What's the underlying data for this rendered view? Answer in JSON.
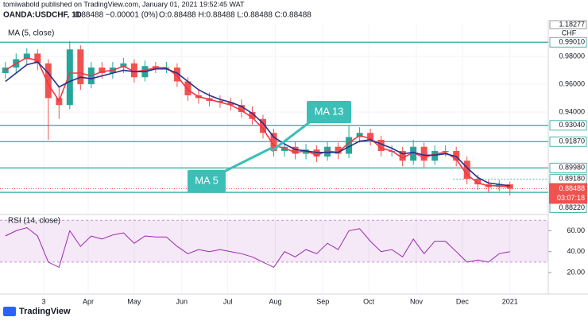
{
  "chart_data": {
    "type": "candlestick",
    "header": {
      "author_line": "tomiwabold published on TradingView.com, January 01, 2021 19:52:45 WAT",
      "symbol": "OANDA:USDCHF, 1D",
      "quote": "0.88488 −0.00001 (0%)",
      "ohlc": "O:0.88488 H:0.88488 L:0.88488 C:0.88488"
    },
    "ma_legend": "MA (5, close)",
    "top_label": "1.18277",
    "currency": "CHF",
    "countdown": "03:07:18",
    "footer": "TradingView",
    "x": [
      38,
      45,
      52,
      59,
      66,
      73,
      80,
      87,
      94,
      101,
      108,
      115,
      122,
      129,
      136,
      143,
      150,
      157,
      164,
      171,
      178,
      185,
      192,
      199,
      206,
      213,
      220,
      227,
      234,
      241,
      248,
      255,
      262,
      269,
      276,
      283,
      290,
      297,
      304,
      311,
      318,
      325,
      332,
      339,
      346,
      353,
      360,
      367
    ],
    "open": [
      0.968,
      0.972,
      0.978,
      0.982,
      0.975,
      0.95,
      0.945,
      0.985,
      0.96,
      0.972,
      0.968,
      0.972,
      0.975,
      0.965,
      0.973,
      0.972,
      0.972,
      0.962,
      0.952,
      0.95,
      0.948,
      0.947,
      0.945,
      0.94,
      0.935,
      0.925,
      0.912,
      0.915,
      0.91,
      0.913,
      0.908,
      0.915,
      0.91,
      0.922,
      0.925,
      0.92,
      0.912,
      0.912,
      0.905,
      0.915,
      0.905,
      0.912,
      0.912,
      0.905,
      0.892,
      0.888,
      0.886,
      0.888
    ],
    "high": [
      0.976,
      0.982,
      0.986,
      0.985,
      0.978,
      0.958,
      0.991,
      0.988,
      0.976,
      0.976,
      0.976,
      0.979,
      0.978,
      0.977,
      0.976,
      0.976,
      0.975,
      0.965,
      0.956,
      0.954,
      0.952,
      0.95,
      0.949,
      0.944,
      0.938,
      0.928,
      0.919,
      0.919,
      0.917,
      0.916,
      0.919,
      0.918,
      0.93,
      0.929,
      0.928,
      0.923,
      0.916,
      0.915,
      0.92,
      0.918,
      0.916,
      0.916,
      0.915,
      0.908,
      0.895,
      0.891,
      0.891,
      0.89
    ],
    "low": [
      0.964,
      0.968,
      0.974,
      0.97,
      0.92,
      0.935,
      0.942,
      0.956,
      0.957,
      0.964,
      0.964,
      0.968,
      0.961,
      0.962,
      0.968,
      0.968,
      0.958,
      0.948,
      0.946,
      0.944,
      0.943,
      0.941,
      0.936,
      0.931,
      0.921,
      0.908,
      0.908,
      0.906,
      0.906,
      0.904,
      0.905,
      0.906,
      0.907,
      0.918,
      0.916,
      0.908,
      0.908,
      0.901,
      0.902,
      0.9,
      0.902,
      0.908,
      0.901,
      0.888,
      0.884,
      0.882,
      0.883,
      0.88
    ],
    "close": [
      0.972,
      0.978,
      0.982,
      0.975,
      0.95,
      0.945,
      0.985,
      0.96,
      0.972,
      0.968,
      0.972,
      0.975,
      0.965,
      0.973,
      0.972,
      0.972,
      0.962,
      0.952,
      0.95,
      0.948,
      0.947,
      0.945,
      0.94,
      0.935,
      0.925,
      0.912,
      0.915,
      0.91,
      0.913,
      0.908,
      0.915,
      0.91,
      0.922,
      0.925,
      0.92,
      0.912,
      0.912,
      0.905,
      0.915,
      0.905,
      0.912,
      0.912,
      0.905,
      0.892,
      0.888,
      0.886,
      0.888,
      0.88488
    ],
    "up_color": "#26a69a",
    "down_color": "#ef5350",
    "series": [
      {
        "name": "MA 5",
        "color": "#f23645",
        "values": [
          0.97,
          0.975,
          0.979,
          0.977,
          0.96,
          0.948,
          0.968,
          0.968,
          0.966,
          0.969,
          0.97,
          0.973,
          0.969,
          0.97,
          0.972,
          0.972,
          0.966,
          0.956,
          0.951,
          0.949,
          0.947,
          0.945,
          0.941,
          0.936,
          0.928,
          0.916,
          0.914,
          0.911,
          0.912,
          0.909,
          0.912,
          0.911,
          0.918,
          0.923,
          0.921,
          0.914,
          0.912,
          0.907,
          0.911,
          0.907,
          0.91,
          0.911,
          0.906,
          0.895,
          0.889,
          0.887,
          0.887,
          0.886
        ]
      },
      {
        "name": "MA 13",
        "color": "#2a2e8c",
        "values": [
          0.962,
          0.968,
          0.974,
          0.976,
          0.968,
          0.958,
          0.962,
          0.965,
          0.964,
          0.966,
          0.968,
          0.97,
          0.969,
          0.969,
          0.971,
          0.971,
          0.968,
          0.962,
          0.956,
          0.952,
          0.949,
          0.947,
          0.944,
          0.939,
          0.932,
          0.922,
          0.917,
          0.913,
          0.912,
          0.911,
          0.911,
          0.911,
          0.915,
          0.919,
          0.92,
          0.917,
          0.914,
          0.91,
          0.911,
          0.909,
          0.909,
          0.91,
          0.908,
          0.9,
          0.893,
          0.889,
          0.888,
          0.887
        ]
      }
    ],
    "levels": [
      {
        "value": 0.9901,
        "label": "0.99010"
      },
      {
        "value": 0.9304,
        "label": "0.93040"
      },
      {
        "value": 0.9187,
        "label": "0.91870"
      },
      {
        "value": 0.8998,
        "label": "0.89980"
      },
      {
        "value": 0.8918,
        "label": "0.89180"
      },
      {
        "value": 0.8822,
        "label": "0.88220"
      }
    ],
    "level_color": "#4db6ac",
    "xlim": [
      34.5,
      392
    ],
    "ylim": [
      0.8663,
      1.0034
    ],
    "yticks": [
      {
        "value": 0.98,
        "label": "0.98000"
      },
      {
        "value": 0.96,
        "label": "0.96000"
      },
      {
        "value": 0.94,
        "label": "0.94000"
      }
    ],
    "xticks": [
      {
        "value": 63,
        "label": "3"
      },
      {
        "value": 92,
        "label": "Apr"
      },
      {
        "value": 122,
        "label": "May"
      },
      {
        "value": 153,
        "label": "Jun"
      },
      {
        "value": 183,
        "label": "Jul"
      },
      {
        "value": 214,
        "label": "Aug"
      },
      {
        "value": 245,
        "label": "Sep"
      },
      {
        "value": 275,
        "label": "Oct"
      },
      {
        "value": 306,
        "label": "Nov"
      },
      {
        "value": 336,
        "label": "Dec"
      },
      {
        "value": 367,
        "label": "2021"
      }
    ],
    "rsi": {
      "label": "RSI (14, close)",
      "color": "#9c27b0",
      "band": [
        30,
        70
      ],
      "ylim": [
        1,
        74
      ],
      "yticks": [
        {
          "value": 60,
          "label": "60.00"
        },
        {
          "value": 40,
          "label": "40.00"
        },
        {
          "value": 20,
          "label": "20.00"
        }
      ],
      "values": [
        55,
        60,
        63,
        55,
        30,
        25,
        60,
        45,
        55,
        52,
        56,
        58,
        48,
        55,
        54,
        54,
        45,
        38,
        42,
        40,
        42,
        40,
        38,
        35,
        30,
        25,
        40,
        35,
        42,
        38,
        48,
        42,
        60,
        62,
        50,
        40,
        42,
        35,
        52,
        38,
        50,
        50,
        40,
        30,
        32,
        30,
        38,
        40
      ]
    }
  }
}
